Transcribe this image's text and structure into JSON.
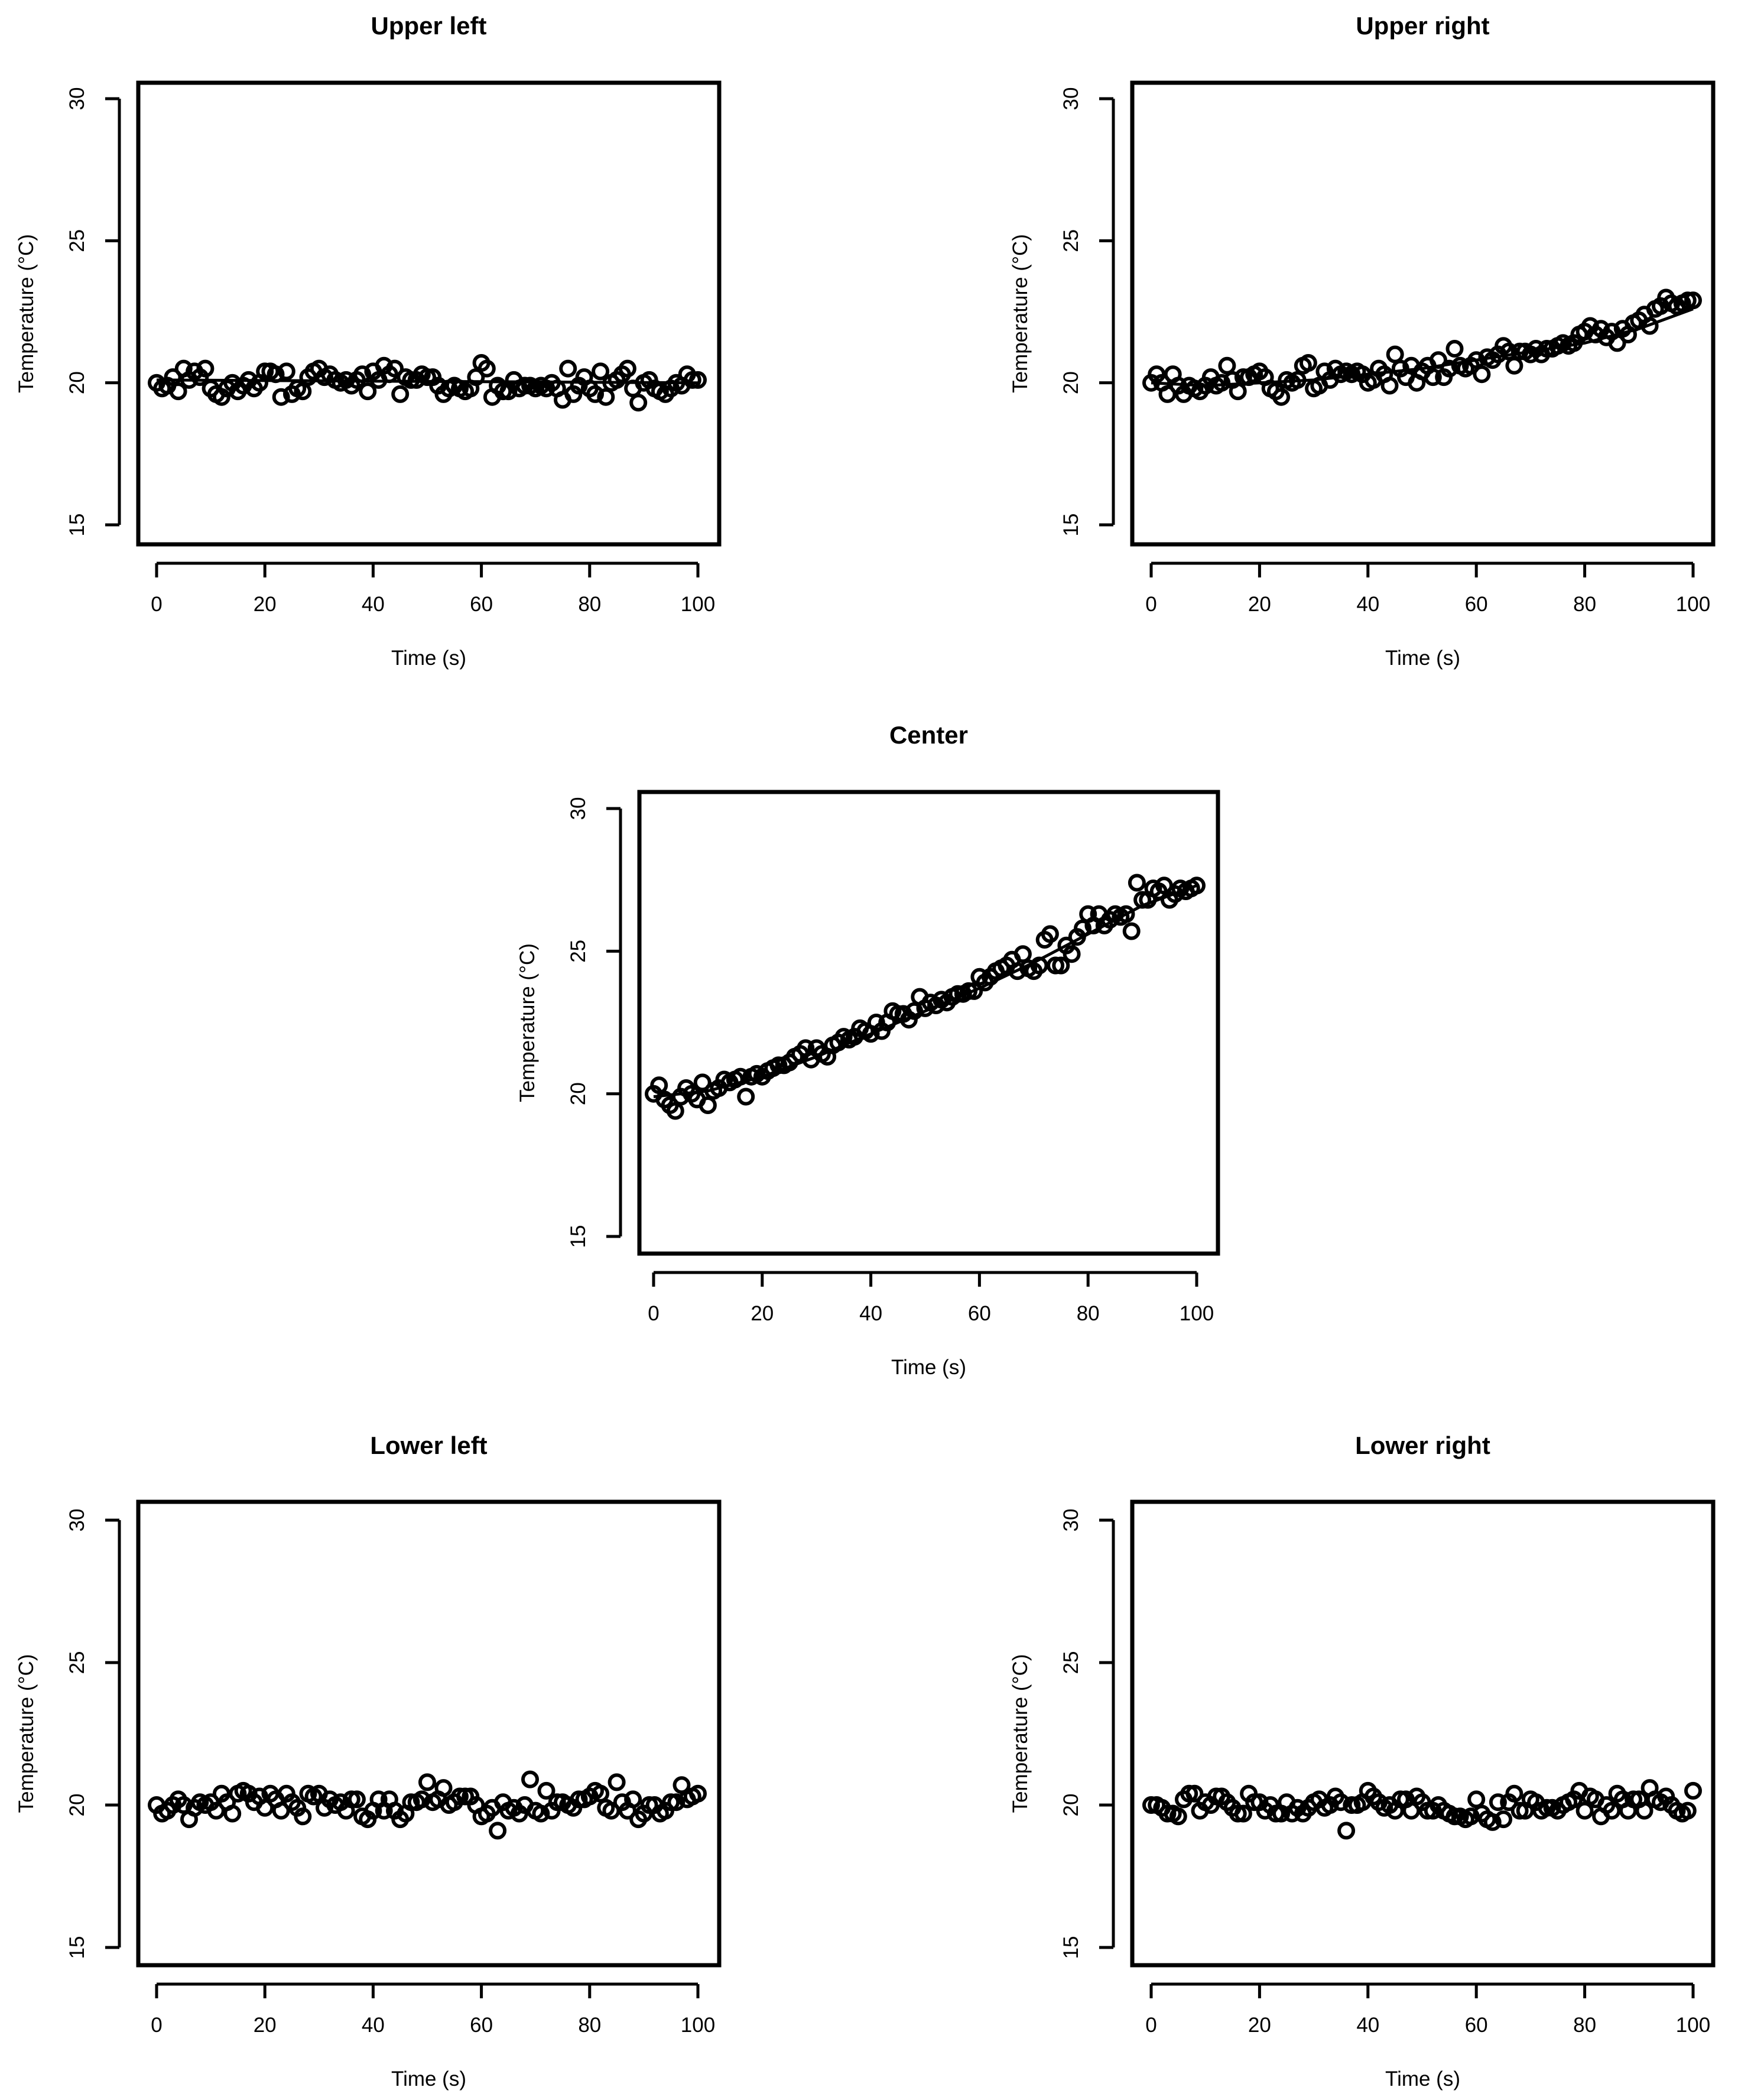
{
  "figure": {
    "background": "#ffffff",
    "foreground": "#000000"
  },
  "chart_data": [
    {
      "type": "scatter",
      "title": "Upper left",
      "xlabel": "Time (s)",
      "ylabel": "Temperature (°C)",
      "xlim": [
        0,
        100
      ],
      "ylim": [
        15,
        30
      ],
      "xticks": [
        0,
        20,
        40,
        60,
        80,
        100
      ],
      "yticks": [
        15,
        20,
        25,
        30
      ],
      "grid": false,
      "legend": "none",
      "marker": "open-circle",
      "fit": {
        "type": "line",
        "x": [
          0,
          100
        ],
        "y": [
          20.1,
          20.0
        ]
      },
      "x": [
        0,
        1,
        2,
        3,
        4,
        5,
        6,
        7,
        8,
        9,
        10,
        11,
        12,
        13,
        14,
        15,
        16,
        17,
        18,
        19,
        20,
        21,
        22,
        23,
        24,
        25,
        26,
        27,
        28,
        29,
        30,
        31,
        32,
        33,
        34,
        35,
        36,
        37,
        38,
        39,
        40,
        41,
        42,
        43,
        44,
        45,
        46,
        47,
        48,
        49,
        50,
        51,
        52,
        53,
        54,
        55,
        56,
        57,
        58,
        59,
        60,
        61,
        62,
        63,
        64,
        65,
        66,
        67,
        68,
        69,
        70,
        71,
        72,
        73,
        74,
        75,
        76,
        77,
        78,
        79,
        80,
        81,
        82,
        83,
        84,
        85,
        86,
        87,
        88,
        89,
        90,
        91,
        92,
        93,
        94,
        95,
        96,
        97,
        98,
        99,
        100
      ],
      "y": [
        20.0,
        19.8,
        19.9,
        20.2,
        19.7,
        20.5,
        20.1,
        20.4,
        20.2,
        20.5,
        19.8,
        19.6,
        19.5,
        19.8,
        20.0,
        19.7,
        19.9,
        20.1,
        19.8,
        20.0,
        20.4,
        20.4,
        20.3,
        19.5,
        20.4,
        19.6,
        19.8,
        19.7,
        20.2,
        20.4,
        20.5,
        20.2,
        20.3,
        20.1,
        20.0,
        20.1,
        19.9,
        20.1,
        20.3,
        19.7,
        20.4,
        20.1,
        20.6,
        20.3,
        20.5,
        19.6,
        20.2,
        20.1,
        20.1,
        20.3,
        20.2,
        20.2,
        19.9,
        19.6,
        19.8,
        19.9,
        19.8,
        19.7,
        19.8,
        20.2,
        20.7,
        20.5,
        19.5,
        19.9,
        19.7,
        19.7,
        20.1,
        19.8,
        19.9,
        19.9,
        19.8,
        19.9,
        19.8,
        20.0,
        19.8,
        19.4,
        20.5,
        19.6,
        19.9,
        20.2,
        19.8,
        19.6,
        20.4,
        19.5,
        20.0,
        20.1,
        20.3,
        20.5,
        19.8,
        19.3,
        20.0,
        20.1,
        19.8,
        19.7,
        19.6,
        19.8,
        20.0,
        19.9,
        20.3,
        20.1,
        20.1
      ]
    },
    {
      "type": "scatter",
      "title": "Upper right",
      "xlabel": "Time (s)",
      "ylabel": "Temperature (°C)",
      "xlim": [
        0,
        100
      ],
      "ylim": [
        15,
        30
      ],
      "xticks": [
        0,
        20,
        40,
        60,
        80,
        100
      ],
      "yticks": [
        15,
        20,
        25,
        30
      ],
      "grid": false,
      "legend": "none",
      "marker": "open-circle",
      "fit": {
        "type": "curve",
        "x": [
          0,
          10,
          20,
          30,
          40,
          50,
          60,
          70,
          80,
          90,
          100
        ],
        "y": [
          20.0,
          19.9,
          20.0,
          20.1,
          20.3,
          20.5,
          20.8,
          21.1,
          21.4,
          21.9,
          22.6
        ]
      },
      "x": [
        0,
        1,
        2,
        3,
        4,
        5,
        6,
        7,
        8,
        9,
        10,
        11,
        12,
        13,
        14,
        15,
        16,
        17,
        18,
        19,
        20,
        21,
        22,
        23,
        24,
        25,
        26,
        27,
        28,
        29,
        30,
        31,
        32,
        33,
        34,
        35,
        36,
        37,
        38,
        39,
        40,
        41,
        42,
        43,
        44,
        45,
        46,
        47,
        48,
        49,
        50,
        51,
        52,
        53,
        54,
        55,
        56,
        57,
        58,
        59,
        60,
        61,
        62,
        63,
        64,
        65,
        66,
        67,
        68,
        69,
        70,
        71,
        72,
        73,
        74,
        75,
        76,
        77,
        78,
        79,
        80,
        81,
        82,
        83,
        84,
        85,
        86,
        87,
        88,
        89,
        90,
        91,
        92,
        93,
        94,
        95,
        96,
        97,
        98,
        99,
        100
      ],
      "y": [
        20.0,
        20.3,
        20.0,
        19.6,
        20.3,
        19.9,
        19.6,
        19.9,
        19.8,
        19.7,
        19.9,
        20.2,
        19.9,
        20.0,
        20.6,
        20.1,
        19.7,
        20.2,
        20.2,
        20.3,
        20.4,
        20.2,
        19.8,
        19.7,
        19.5,
        20.1,
        20.0,
        20.1,
        20.6,
        20.7,
        19.8,
        19.9,
        20.4,
        20.1,
        20.5,
        20.3,
        20.4,
        20.3,
        20.4,
        20.3,
        20.0,
        20.1,
        20.5,
        20.3,
        19.9,
        21.0,
        20.5,
        20.2,
        20.6,
        20.0,
        20.4,
        20.6,
        20.2,
        20.8,
        20.2,
        20.5,
        21.2,
        20.6,
        20.5,
        20.6,
        20.8,
        20.3,
        20.9,
        20.8,
        21.0,
        21.3,
        21.1,
        20.6,
        21.1,
        21.1,
        21.0,
        21.2,
        21.0,
        21.2,
        21.2,
        21.3,
        21.4,
        21.3,
        21.4,
        21.7,
        21.8,
        22.0,
        21.7,
        21.9,
        21.6,
        21.8,
        21.4,
        21.9,
        21.7,
        22.1,
        22.2,
        22.4,
        22.0,
        22.6,
        22.7,
        23.0,
        22.8,
        22.7,
        22.8,
        22.9,
        22.9
      ]
    },
    {
      "type": "scatter",
      "title": "Center",
      "xlabel": "Time (s)",
      "ylabel": "Temperature (°C)",
      "xlim": [
        0,
        100
      ],
      "ylim": [
        15,
        30
      ],
      "xticks": [
        0,
        20,
        40,
        60,
        80,
        100
      ],
      "yticks": [
        15,
        20,
        25,
        30
      ],
      "grid": false,
      "legend": "none",
      "marker": "open-circle",
      "fit": {
        "type": "curve",
        "x": [
          0,
          10,
          20,
          30,
          40,
          50,
          60,
          70,
          80,
          90,
          100
        ],
        "y": [
          19.9,
          20.1,
          20.6,
          21.3,
          22.1,
          22.9,
          23.7,
          24.6,
          25.6,
          26.6,
          27.3
        ]
      },
      "x": [
        0,
        1,
        2,
        3,
        4,
        5,
        6,
        7,
        8,
        9,
        10,
        11,
        12,
        13,
        14,
        15,
        16,
        17,
        18,
        19,
        20,
        21,
        22,
        23,
        24,
        25,
        26,
        27,
        28,
        29,
        30,
        31,
        32,
        33,
        34,
        35,
        36,
        37,
        38,
        39,
        40,
        41,
        42,
        43,
        44,
        45,
        46,
        47,
        48,
        49,
        50,
        51,
        52,
        53,
        54,
        55,
        56,
        57,
        58,
        59,
        60,
        61,
        62,
        63,
        64,
        65,
        66,
        67,
        68,
        69,
        70,
        71,
        72,
        73,
        74,
        75,
        76,
        77,
        78,
        79,
        80,
        81,
        82,
        83,
        84,
        85,
        86,
        87,
        88,
        89,
        90,
        91,
        92,
        93,
        94,
        95,
        96,
        97,
        98,
        99,
        100
      ],
      "y": [
        20.0,
        20.3,
        19.8,
        19.6,
        19.4,
        19.9,
        20.2,
        20.0,
        19.8,
        20.4,
        19.6,
        20.1,
        20.2,
        20.5,
        20.4,
        20.5,
        20.6,
        19.9,
        20.6,
        20.7,
        20.6,
        20.8,
        20.9,
        21.0,
        21.0,
        21.1,
        21.3,
        21.4,
        21.6,
        21.2,
        21.6,
        21.4,
        21.3,
        21.7,
        21.8,
        22.0,
        21.9,
        22.0,
        22.3,
        22.2,
        22.1,
        22.5,
        22.2,
        22.5,
        22.9,
        22.8,
        22.8,
        22.6,
        22.9,
        23.4,
        23.0,
        23.2,
        23.1,
        23.3,
        23.2,
        23.4,
        23.5,
        23.5,
        23.6,
        23.6,
        24.1,
        23.9,
        24.1,
        24.3,
        24.4,
        24.5,
        24.7,
        24.3,
        24.9,
        24.4,
        24.3,
        24.5,
        25.4,
        25.6,
        24.5,
        24.5,
        25.2,
        24.9,
        25.5,
        25.8,
        26.3,
        25.9,
        26.3,
        25.9,
        26.1,
        26.3,
        26.2,
        26.3,
        25.7,
        27.4,
        26.8,
        26.8,
        27.2,
        27.1,
        27.3,
        26.8,
        27.0,
        27.2,
        27.1,
        27.2,
        27.3
      ]
    },
    {
      "type": "scatter",
      "title": "Lower left",
      "xlabel": "Time (s)",
      "ylabel": "Temperature (°C)",
      "xlim": [
        0,
        100
      ],
      "ylim": [
        15,
        30
      ],
      "xticks": [
        0,
        20,
        40,
        60,
        80,
        100
      ],
      "yticks": [
        15,
        20,
        25,
        30
      ],
      "grid": false,
      "legend": "none",
      "marker": "open-circle",
      "x": [
        0,
        1,
        2,
        3,
        4,
        5,
        6,
        7,
        8,
        9,
        10,
        11,
        12,
        13,
        14,
        15,
        16,
        17,
        18,
        19,
        20,
        21,
        22,
        23,
        24,
        25,
        26,
        27,
        28,
        29,
        30,
        31,
        32,
        33,
        34,
        35,
        36,
        37,
        38,
        39,
        40,
        41,
        42,
        43,
        44,
        45,
        46,
        47,
        48,
        49,
        50,
        51,
        52,
        53,
        54,
        55,
        56,
        57,
        58,
        59,
        60,
        61,
        62,
        63,
        64,
        65,
        66,
        67,
        68,
        69,
        70,
        71,
        72,
        73,
        74,
        75,
        76,
        77,
        78,
        79,
        80,
        81,
        82,
        83,
        84,
        85,
        86,
        87,
        88,
        89,
        90,
        91,
        92,
        93,
        94,
        95,
        96,
        97,
        98,
        99,
        100
      ],
      "y": [
        20.0,
        19.7,
        19.8,
        20.0,
        20.2,
        20.0,
        19.5,
        19.9,
        20.1,
        20.0,
        20.1,
        19.8,
        20.4,
        20.1,
        19.7,
        20.4,
        20.5,
        20.4,
        20.1,
        20.3,
        19.9,
        20.4,
        20.2,
        19.8,
        20.4,
        20.1,
        19.9,
        19.6,
        20.4,
        20.3,
        20.4,
        19.9,
        20.2,
        20.0,
        20.1,
        19.8,
        20.2,
        20.2,
        19.6,
        19.5,
        19.8,
        20.2,
        19.8,
        20.2,
        19.8,
        19.5,
        19.7,
        20.1,
        20.1,
        20.2,
        20.8,
        20.1,
        20.2,
        20.6,
        20.0,
        20.1,
        20.3,
        20.3,
        20.3,
        20.0,
        19.6,
        19.7,
        19.9,
        19.1,
        20.1,
        19.8,
        19.9,
        19.7,
        20.0,
        20.9,
        19.8,
        19.7,
        20.5,
        19.8,
        20.1,
        20.1,
        20.0,
        19.9,
        20.2,
        20.2,
        20.3,
        20.5,
        20.4,
        19.9,
        19.8,
        20.8,
        20.1,
        19.8,
        20.2,
        19.5,
        19.7,
        20.0,
        20.0,
        19.7,
        19.8,
        20.1,
        20.1,
        20.7,
        20.2,
        20.3,
        20.4
      ]
    },
    {
      "type": "scatter",
      "title": "Lower right",
      "xlabel": "Time (s)",
      "ylabel": "Temperature (°C)",
      "xlim": [
        0,
        100
      ],
      "ylim": [
        15,
        30
      ],
      "xticks": [
        0,
        20,
        40,
        60,
        80,
        100
      ],
      "yticks": [
        15,
        20,
        25,
        30
      ],
      "grid": false,
      "legend": "none",
      "marker": "open-circle",
      "x": [
        0,
        1,
        2,
        3,
        4,
        5,
        6,
        7,
        8,
        9,
        10,
        11,
        12,
        13,
        14,
        15,
        16,
        17,
        18,
        19,
        20,
        21,
        22,
        23,
        24,
        25,
        26,
        27,
        28,
        29,
        30,
        31,
        32,
        33,
        34,
        35,
        36,
        37,
        38,
        39,
        40,
        41,
        42,
        43,
        44,
        45,
        46,
        47,
        48,
        49,
        50,
        51,
        52,
        53,
        54,
        55,
        56,
        57,
        58,
        59,
        60,
        61,
        62,
        63,
        64,
        65,
        66,
        67,
        68,
        69,
        70,
        71,
        72,
        73,
        74,
        75,
        76,
        77,
        78,
        79,
        80,
        81,
        82,
        83,
        84,
        85,
        86,
        87,
        88,
        89,
        90,
        91,
        92,
        93,
        94,
        95,
        96,
        97,
        98,
        99,
        100
      ],
      "y": [
        20.0,
        20.0,
        19.9,
        19.7,
        19.7,
        19.6,
        20.2,
        20.4,
        20.4,
        19.8,
        20.1,
        20.0,
        20.3,
        20.3,
        20.1,
        19.9,
        19.7,
        19.7,
        20.4,
        20.1,
        20.1,
        19.8,
        20.0,
        19.7,
        19.7,
        20.1,
        19.7,
        19.9,
        19.7,
        19.9,
        20.1,
        20.2,
        19.9,
        20.0,
        20.3,
        20.1,
        19.1,
        20.0,
        20.0,
        20.1,
        20.5,
        20.3,
        20.1,
        19.9,
        20.0,
        19.8,
        20.2,
        20.2,
        19.8,
        20.3,
        20.1,
        19.8,
        19.8,
        20.0,
        19.8,
        19.7,
        19.6,
        19.6,
        19.5,
        19.6,
        20.2,
        19.7,
        19.5,
        19.4,
        20.1,
        19.5,
        20.1,
        20.4,
        19.8,
        19.8,
        20.2,
        20.1,
        19.8,
        19.9,
        19.9,
        19.8,
        20.0,
        20.1,
        20.2,
        20.5,
        19.8,
        20.3,
        20.2,
        19.6,
        20.0,
        19.8,
        20.4,
        20.2,
        19.8,
        20.2,
        20.2,
        19.8,
        20.6,
        20.2,
        20.1,
        20.3,
        20.0,
        19.8,
        19.7,
        19.8,
        20.5
      ]
    }
  ]
}
